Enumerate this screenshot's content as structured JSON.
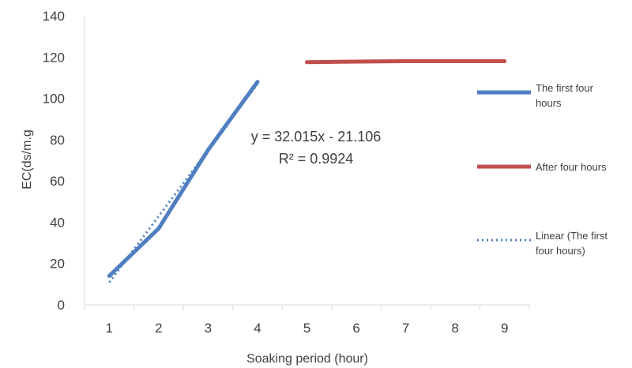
{
  "chart_data": {
    "type": "line",
    "title": "",
    "xlabel": "Soaking period (hour)",
    "ylabel": "EC(ds/m.g",
    "xlim": [
      0.5,
      9.5
    ],
    "ylim": [
      0,
      140
    ],
    "x_ticks": [
      "1",
      "2",
      "3",
      "4",
      "5",
      "6",
      "7",
      "8",
      "9"
    ],
    "y_ticks": [
      "0",
      "20",
      "40",
      "60",
      "80",
      "100",
      "120",
      "140"
    ],
    "grid": false,
    "legend_position": "right",
    "series": [
      {
        "name": "The first four hours",
        "color": "#4f7fc1",
        "style": "solid",
        "x": [
          1,
          2,
          3,
          4
        ],
        "y": [
          14,
          37,
          75,
          108
        ]
      },
      {
        "name": "After four hours",
        "color": "#c0504d",
        "style": "solid",
        "x": [
          5,
          6,
          7,
          8,
          9
        ],
        "y": [
          117.5,
          117.8,
          118,
          118,
          118
        ]
      },
      {
        "name": "Linear (The first four hours)",
        "color": "#4f7fc1",
        "style": "dotted",
        "x": [
          1,
          4
        ],
        "y": [
          10.909,
          106.954
        ]
      }
    ],
    "annotations": {
      "equation": "y = 32.015x - 21.106",
      "r_squared": "R² = 0.9924"
    },
    "legend": {
      "items": [
        {
          "lines": [
            "The first four",
            "hours"
          ]
        },
        {
          "lines": [
            "After four hours"
          ]
        },
        {
          "lines": [
            "Linear (The first",
            "four hours)"
          ]
        }
      ]
    }
  }
}
